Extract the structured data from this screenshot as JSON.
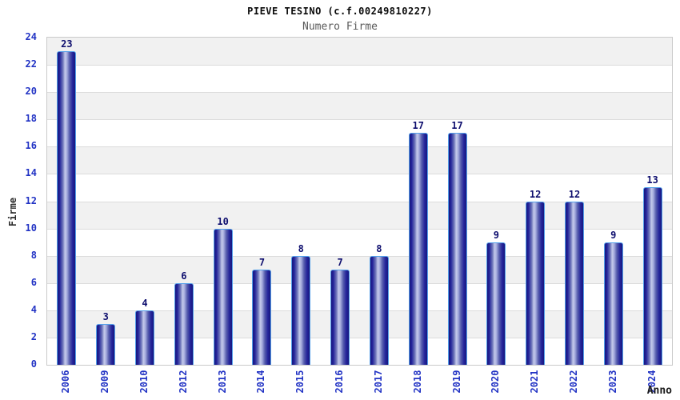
{
  "chart_data": {
    "type": "bar",
    "title": "PIEVE TESINO (c.f.00249810227)",
    "subtitle": "Numero Firme",
    "xlabel": "Anno",
    "ylabel": "Firme",
    "categories": [
      "2006",
      "2009",
      "2010",
      "2012",
      "2013",
      "2014",
      "2015",
      "2016",
      "2017",
      "2018",
      "2019",
      "2020",
      "2021",
      "2022",
      "2023",
      "2024"
    ],
    "values": [
      23,
      3,
      4,
      6,
      10,
      7,
      8,
      7,
      8,
      17,
      17,
      9,
      12,
      12,
      9,
      13
    ],
    "ylim": [
      0,
      24
    ],
    "ytick_step": 2,
    "yticks": [
      0,
      2,
      4,
      6,
      8,
      10,
      12,
      14,
      16,
      18,
      20,
      22,
      24
    ],
    "legend": "none",
    "grid": "horizontal gridlines every 2 units with alternating gray/white bands",
    "colors": {
      "tick_label_blue": "#2233c4",
      "value_label_navy": "#0e0e6e",
      "bar_dark": "#17177e",
      "bar_light": "#c3c8ea",
      "bar_border": "#54a0ea",
      "band_gray": "#f1f1f1",
      "band_white": "#ffffff",
      "gridline": "#dcdcdc",
      "plot_border": "#cacaca",
      "title_color": "#0a0a0a",
      "subtitle_color": "#5a5a5a"
    }
  }
}
